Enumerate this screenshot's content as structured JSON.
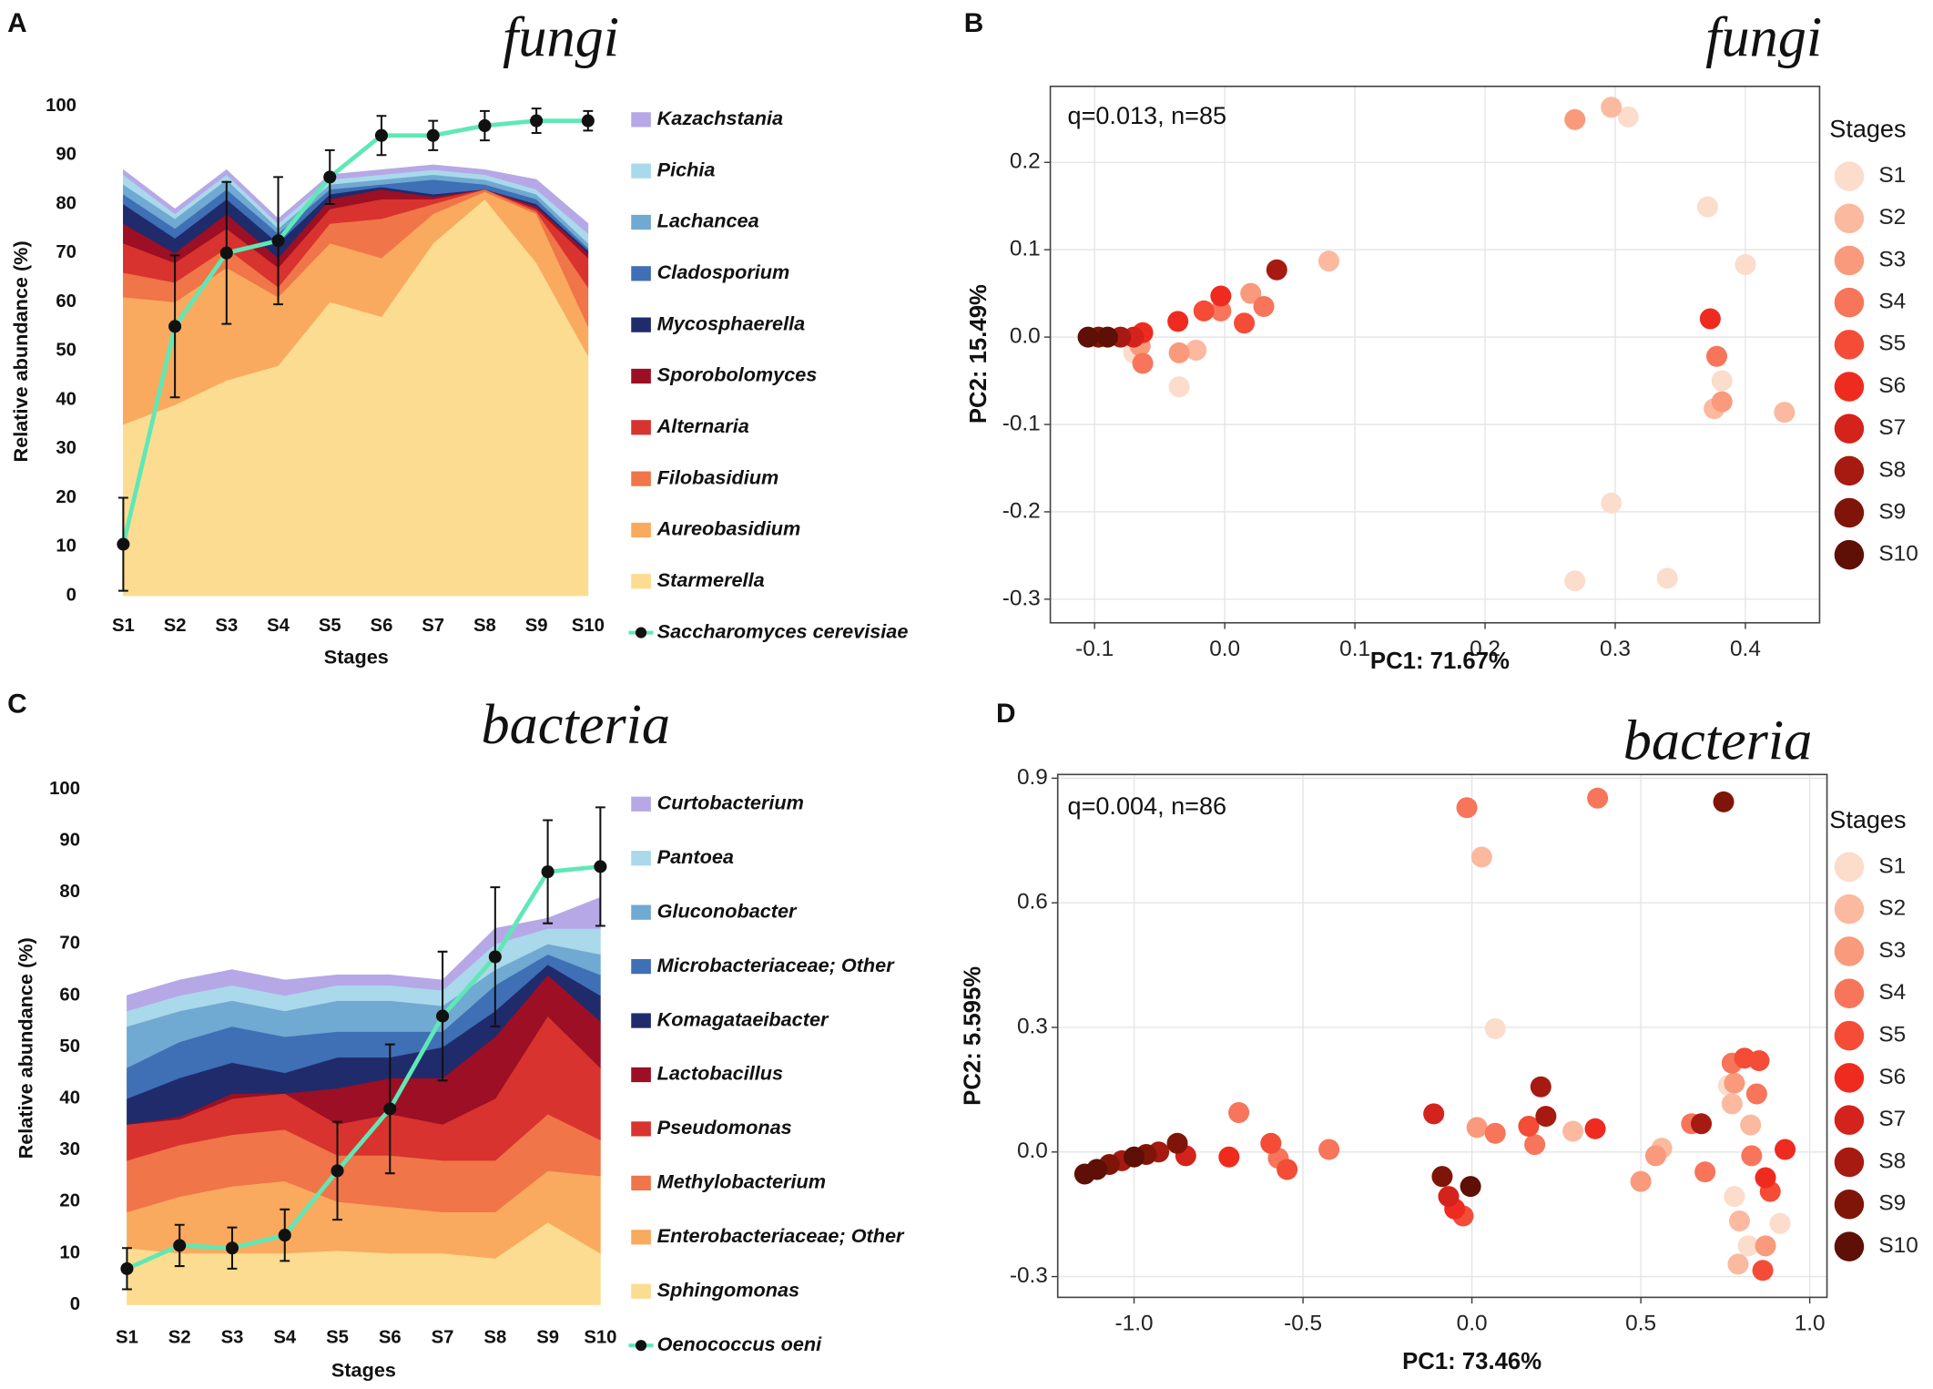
{
  "chart_data": [
    {
      "type": "stacked_area_line",
      "panel": "A",
      "title": "fungi",
      "xlabel": "Stages",
      "ylabel": "Relative abundance (%)",
      "categories": [
        "S1",
        "S2",
        "S3",
        "S4",
        "S5",
        "S6",
        "S7",
        "S8",
        "S9",
        "S10"
      ],
      "ylim": [
        0,
        100
      ],
      "yticks": [
        0,
        10,
        20,
        30,
        40,
        50,
        60,
        70,
        80,
        90,
        100
      ],
      "series": [
        {
          "name": "Starmerella",
          "color": "#fcdc90",
          "values": [
            35,
            39,
            44,
            47,
            60,
            57,
            72,
            81,
            68,
            49
          ]
        },
        {
          "name": "Aureobasidium",
          "color": "#f9aa5e",
          "values": [
            26,
            21,
            23,
            14,
            12,
            12,
            6,
            1.5,
            10,
            6
          ]
        },
        {
          "name": "Filobasidium",
          "color": "#f07548",
          "values": [
            5,
            4,
            4,
            2,
            4,
            8,
            2,
            0.5,
            0.5,
            8
          ]
        },
        {
          "name": "Alternaria",
          "color": "#d8332e",
          "values": [
            6,
            4,
            4,
            4,
            3,
            4,
            1,
            0,
            0.5,
            6
          ]
        },
        {
          "name": "Sporobolomyces",
          "color": "#9c0f24",
          "values": [
            4,
            2,
            3,
            2,
            2,
            2,
            0.5,
            0,
            0.5,
            1
          ]
        },
        {
          "name": "Mycosphaerella",
          "color": "#202b6c",
          "values": [
            4,
            3,
            3,
            3,
            1,
            0.5,
            0.5,
            0,
            0.5,
            0.5
          ]
        },
        {
          "name": "Cladosporium",
          "color": "#3f6fb5",
          "values": [
            2,
            2,
            2,
            2,
            1,
            0.5,
            3,
            1,
            1,
            0.5
          ]
        },
        {
          "name": "Lachancea",
          "color": "#70a9d1",
          "values": [
            2,
            2,
            2,
            1,
            1,
            1,
            1,
            1,
            1,
            1
          ]
        },
        {
          "name": "Pichia",
          "color": "#a9d9ea",
          "values": [
            2,
            1,
            1,
            1,
            1,
            1,
            1,
            1,
            1,
            2
          ]
        },
        {
          "name": "Kazachstania",
          "color": "#b6a8e6",
          "values": [
            1,
            1,
            1,
            1,
            1,
            1,
            1,
            1,
            2,
            2
          ]
        },
        {
          "name": "Saccharomyces cerevisiae",
          "type": "line",
          "color": "#5fe8b6",
          "values": [
            10.5,
            55,
            70,
            72.5,
            85.5,
            94,
            94,
            96,
            97,
            97
          ],
          "errors": [
            9.5,
            14.5,
            14.5,
            13,
            5.5,
            4,
            3,
            3,
            2.5,
            2
          ]
        }
      ]
    },
    {
      "type": "scatter",
      "panel": "B",
      "title": "fungi",
      "annotation": "q=0.013, n=85",
      "xlabel": "PC1: 71.67%",
      "ylabel": "PC2: 15.49%",
      "legend_title": "Stages",
      "xlim": [
        -0.134,
        0.457
      ],
      "ylim": [
        -0.327,
        0.287
      ],
      "grid": true,
      "xticks": [
        -0.1,
        {
          "value": 0,
          "label": "0.0"
        },
        0.1,
        0.2,
        0.3,
        0.4
      ],
      "yticks": [
        -0.3,
        -0.2,
        -0.1,
        {
          "value": 0,
          "label": "0.0"
        },
        0.1,
        0.2
      ],
      "series": [
        {
          "name": "S1",
          "color": "#fcdccb",
          "x": [
            0.31,
            0.371,
            0.4,
            -0.035,
            -0.07,
            0.382,
            0.297,
            0.269,
            0.34
          ],
          "values": [
            0.252,
            0.149,
            0.083,
            -0.057,
            -0.018,
            -0.05,
            -0.19,
            -0.279,
            -0.276
          ]
        },
        {
          "name": "S2",
          "color": "#fbb9a0",
          "x": [
            0.297,
            0.08,
            -0.022,
            0.376,
            0.43
          ],
          "values": [
            0.263,
            0.087,
            -0.015,
            -0.082,
            -0.086
          ]
        },
        {
          "name": "S3",
          "color": "#f99a7c",
          "x": [
            0.269,
            0.02,
            -0.035,
            -0.065,
            0.382
          ],
          "values": [
            0.249,
            0.05,
            -0.018,
            -0.01,
            -0.074
          ]
        },
        {
          "name": "S4",
          "color": "#f7755a",
          "x": [
            0.03,
            -0.003,
            -0.063,
            0.378
          ],
          "values": [
            0.035,
            0.03,
            -0.03,
            -0.022
          ]
        },
        {
          "name": "S5",
          "color": "#f44c37",
          "x": [
            0.015,
            -0.016
          ],
          "values": [
            0.016,
            0.03
          ]
        },
        {
          "name": "S6",
          "color": "#ef2b1f",
          "x": [
            -0.003,
            -0.036,
            -0.063,
            0.373
          ],
          "values": [
            0.047,
            0.018,
            0.005,
            0.021
          ]
        },
        {
          "name": "S7",
          "color": "#d4231c",
          "x": [
            -0.07
          ],
          "values": [
            0
          ]
        },
        {
          "name": "S8",
          "color": "#a61a11",
          "x": [
            0.04,
            -0.08
          ],
          "values": [
            0.077,
            0
          ]
        },
        {
          "name": "S9",
          "color": "#7f1508",
          "x": [
            -0.097
          ],
          "values": [
            0
          ]
        },
        {
          "name": "S10",
          "color": "#5e0f06",
          "x": [
            -0.105,
            -0.09
          ],
          "values": [
            0,
            0
          ]
        }
      ]
    },
    {
      "type": "stacked_area_line",
      "panel": "C",
      "title": "bacteria",
      "xlabel": "Stages",
      "ylabel": "Relative abundance (%)",
      "categories": [
        "S1",
        "S2",
        "S3",
        "S4",
        "S5",
        "S6",
        "S7",
        "S8",
        "S9",
        "S10"
      ],
      "ylim": [
        0,
        100
      ],
      "yticks": [
        0,
        10,
        20,
        30,
        40,
        50,
        60,
        70,
        80,
        90,
        100
      ],
      "series": [
        {
          "name": "Sphingomonas",
          "color": "#fcdc90",
          "values": [
            11,
            10,
            10,
            10,
            10.5,
            10,
            10,
            9,
            16,
            10
          ]
        },
        {
          "name": "Enterobacteriaceae; Other",
          "color": "#f9aa5e",
          "values": [
            7,
            11,
            13,
            14,
            9.5,
            9,
            8,
            9,
            10,
            15
          ]
        },
        {
          "name": "Methylobacterium",
          "color": "#f07548",
          "values": [
            10,
            10,
            10,
            10,
            9,
            10,
            10,
            10,
            11,
            7
          ]
        },
        {
          "name": "Pseudomonas",
          "color": "#d8332e",
          "values": [
            7,
            5,
            7,
            7,
            6,
            8,
            7,
            12,
            19,
            14
          ]
        },
        {
          "name": "Lactobacillus",
          "color": "#9c0f24",
          "values": [
            0,
            0.5,
            1,
            0,
            7,
            7,
            9,
            12,
            8,
            9
          ]
        },
        {
          "name": "Komagataeibacter",
          "color": "#202b6c",
          "values": [
            5,
            7.5,
            6,
            4,
            6,
            4,
            6,
            5,
            2,
            5
          ]
        },
        {
          "name": "Microbacteriaceae; Other",
          "color": "#3f6fb5",
          "values": [
            6,
            7,
            7,
            7,
            5,
            5,
            3,
            5,
            2,
            4
          ]
        },
        {
          "name": "Gluconobacter",
          "color": "#70a9d1",
          "values": [
            8,
            6,
            5,
            5,
            6,
            6,
            5,
            3,
            2,
            4
          ]
        },
        {
          "name": "Pantoea",
          "color": "#a9d9ea",
          "values": [
            3,
            3,
            3,
            3,
            3,
            3,
            3,
            5,
            3,
            5
          ]
        },
        {
          "name": "Curtobacterium",
          "color": "#b6a8e6",
          "values": [
            3,
            3,
            3,
            3,
            2,
            2,
            2,
            3,
            2,
            6
          ]
        },
        {
          "name": "Oenococcus oeni",
          "type": "line",
          "color": "#5fe8b6",
          "values": [
            7,
            11.5,
            11,
            13.5,
            26,
            38,
            56,
            67.5,
            84,
            85
          ],
          "errors": [
            4,
            4,
            4,
            5,
            9.5,
            12.5,
            12.5,
            13.5,
            10,
            11.5
          ]
        }
      ]
    },
    {
      "type": "scatter",
      "panel": "D",
      "title": "bacteria",
      "annotation": "q=0.004, n=86",
      "xlabel": "PC1: 73.46%",
      "ylabel": "PC2: 5.595%",
      "legend_title": "Stages",
      "xlim": [
        -1.226,
        1.051
      ],
      "ylim": [
        -0.35,
        0.909
      ],
      "grid": true,
      "xticks": [
        {
          "value": -1,
          "label": "-1.0"
        },
        -0.5,
        {
          "value": 0,
          "label": "0.0"
        },
        0.5,
        {
          "value": 1,
          "label": "1.0"
        }
      ],
      "yticks": [
        -0.3,
        {
          "value": 0,
          "label": "0.0"
        },
        0.3,
        0.6,
        0.9
      ],
      "series": [
        {
          "name": "S1",
          "color": "#fcdccb",
          "x": [
            0.069,
            0.759,
            0.912,
            0.777,
            0.818
          ],
          "values": [
            0.297,
            0.16,
            -0.172,
            -0.107,
            -0.226
          ]
        },
        {
          "name": "S2",
          "color": "#fbb9a0",
          "x": [
            0.029,
            0.299,
            0.562,
            0.77,
            0.825,
            0.792,
            0.788
          ],
          "values": [
            0.71,
            0.05,
            0.009,
            0.116,
            0.065,
            -0.166,
            -0.27
          ]
        },
        {
          "name": "S3",
          "color": "#f99a7c",
          "x": [
            0.015,
            0.5,
            0.544,
            0.777,
            0.869
          ],
          "values": [
            0.059,
            -0.071,
            -0.009,
            0.166,
            -0.226
          ]
        },
        {
          "name": "S4",
          "color": "#f7755a",
          "x": [
            -0.015,
            0.372,
            0.069,
            0.186,
            -0.69,
            -0.573,
            -0.423,
            0.65,
            0.69,
            0.77,
            0.843,
            0.828
          ],
          "values": [
            0.829,
            0.852,
            0.045,
            0.018,
            0.095,
            -0.015,
            0.006,
            0.068,
            -0.048,
            0.214,
            0.14,
            -0.009
          ]
        },
        {
          "name": "S5",
          "color": "#f44c37",
          "x": [
            0.168,
            -0.026,
            -0.595,
            -0.547,
            0.807,
            0.85,
            0.883,
            0.861
          ],
          "values": [
            0.062,
            -0.154,
            0.021,
            -0.042,
            0.226,
            0.22,
            -0.095,
            -0.285
          ]
        },
        {
          "name": "S6",
          "color": "#ef2b1f",
          "x": [
            0.365,
            -0.051,
            -0.719,
            0.869,
            0.927
          ],
          "values": [
            0.056,
            -0.137,
            -0.012,
            -0.062,
            0.006
          ]
        },
        {
          "name": "S7",
          "color": "#d4231c",
          "x": [
            -0.113,
            -0.069,
            -0.847
          ],
          "values": [
            0.092,
            -0.107,
            -0.009
          ]
        },
        {
          "name": "S8",
          "color": "#a61a11",
          "x": [
            0.204,
            0.219,
            -1.036,
            -0.927,
            0.679
          ],
          "values": [
            0.157,
            0.086,
            -0.021,
            0,
            0.068
          ]
        },
        {
          "name": "S9",
          "color": "#7f1508",
          "x": [
            0.745,
            -0.088,
            -1.073,
            -0.964,
            -0.872
          ],
          "values": [
            0.843,
            -0.059,
            -0.03,
            -0.006,
            0.021
          ]
        },
        {
          "name": "S10",
          "color": "#5e0f06",
          "x": [
            -0.004,
            -1.146,
            -1.11,
            -1
          ],
          "values": [
            -0.083,
            -0.053,
            -0.042,
            -0.012
          ]
        }
      ]
    }
  ]
}
